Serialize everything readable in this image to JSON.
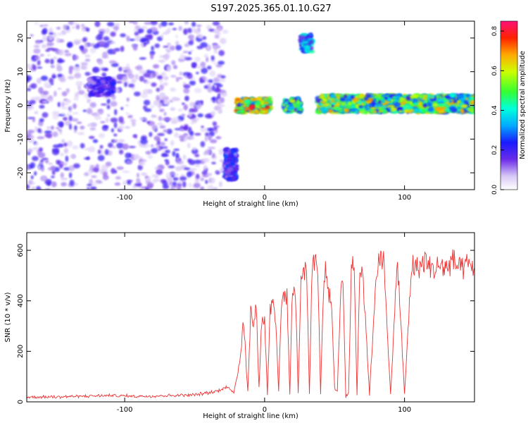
{
  "title": "S197.2025.365.01.10.G27",
  "chart_data": [
    {
      "type": "heatmap",
      "xlabel": "Height of straight line (km)",
      "ylabel": "Frequency (Hz)",
      "xlim": [
        -170,
        150
      ],
      "ylim": [
        -25,
        25
      ],
      "xticks": [
        -100,
        0,
        100
      ],
      "yticks": [
        -20,
        -10,
        0,
        10,
        20
      ],
      "colorbar": {
        "label": "Normalized spectral amplitude",
        "range": [
          0.0,
          0.85
        ],
        "ticks": [
          "0.0",
          "0.2",
          "0.4",
          "0.6",
          "0.8"
        ]
      },
      "features": [
        {
          "x_range": [
            -170,
            -28
          ],
          "y_range": [
            -25,
            25
          ],
          "amplitude": 0.08,
          "note_type": "broadband noise"
        },
        {
          "x_range": [
            -125,
            -108
          ],
          "y_range": [
            3,
            8
          ],
          "amplitude": 0.25
        },
        {
          "x_range": [
            -28,
            -20
          ],
          "y_range": [
            -22,
            -13
          ],
          "amplitude": 0.3
        },
        {
          "x_range": [
            -20,
            4
          ],
          "y_range": [
            -2,
            2
          ],
          "amplitude": 0.8
        },
        {
          "x_range": [
            14,
            26
          ],
          "y_range": [
            -2,
            2
          ],
          "amplitude": 0.6
        },
        {
          "x_range": [
            26,
            34
          ],
          "y_range": [
            16,
            21
          ],
          "amplitude": 0.45
        },
        {
          "x_range": [
            38,
            150
          ],
          "y_range": [
            -2,
            3
          ],
          "amplitude": 0.7
        }
      ]
    },
    {
      "type": "line",
      "xlabel": "Height of straight line (km)",
      "ylabel": "SNR (10 * v/v)",
      "xlim": [
        -170,
        150
      ],
      "ylim": [
        0,
        670
      ],
      "xticks": [
        -100,
        0,
        100
      ],
      "yticks": [
        0,
        200,
        400,
        600
      ],
      "series": [
        {
          "color": "#ee3333",
          "x": [
            -170,
            -150,
            -130,
            -110,
            -90,
            -70,
            -50,
            -35,
            -28,
            -22,
            -18,
            -15,
            -12,
            -10,
            -8,
            -6,
            -4,
            -2,
            0,
            2,
            4,
            6,
            8,
            10,
            12,
            14,
            16,
            18,
            20,
            22,
            24,
            26,
            28,
            30,
            32,
            34,
            36,
            38,
            40,
            42,
            44,
            46,
            48,
            50,
            52,
            54,
            56,
            58,
            60,
            62,
            64,
            66,
            68,
            70,
            75,
            80,
            85,
            90,
            95,
            100,
            105,
            110,
            115,
            120,
            125,
            130,
            135,
            140,
            145,
            150
          ],
          "y": [
            18,
            20,
            22,
            25,
            22,
            25,
            28,
            40,
            60,
            40,
            150,
            320,
            40,
            360,
            300,
            380,
            60,
            330,
            320,
            30,
            370,
            420,
            320,
            40,
            380,
            430,
            410,
            30,
            460,
            440,
            30,
            510,
            520,
            540,
            30,
            560,
            570,
            520,
            30,
            450,
            530,
            420,
            380,
            50,
            40,
            400,
            500,
            20,
            30,
            540,
            560,
            30,
            520,
            520,
            30,
            540,
            560,
            30,
            560,
            30,
            540,
            530,
            560,
            520,
            540,
            530,
            560,
            520,
            540,
            530
          ]
        }
      ]
    }
  ]
}
